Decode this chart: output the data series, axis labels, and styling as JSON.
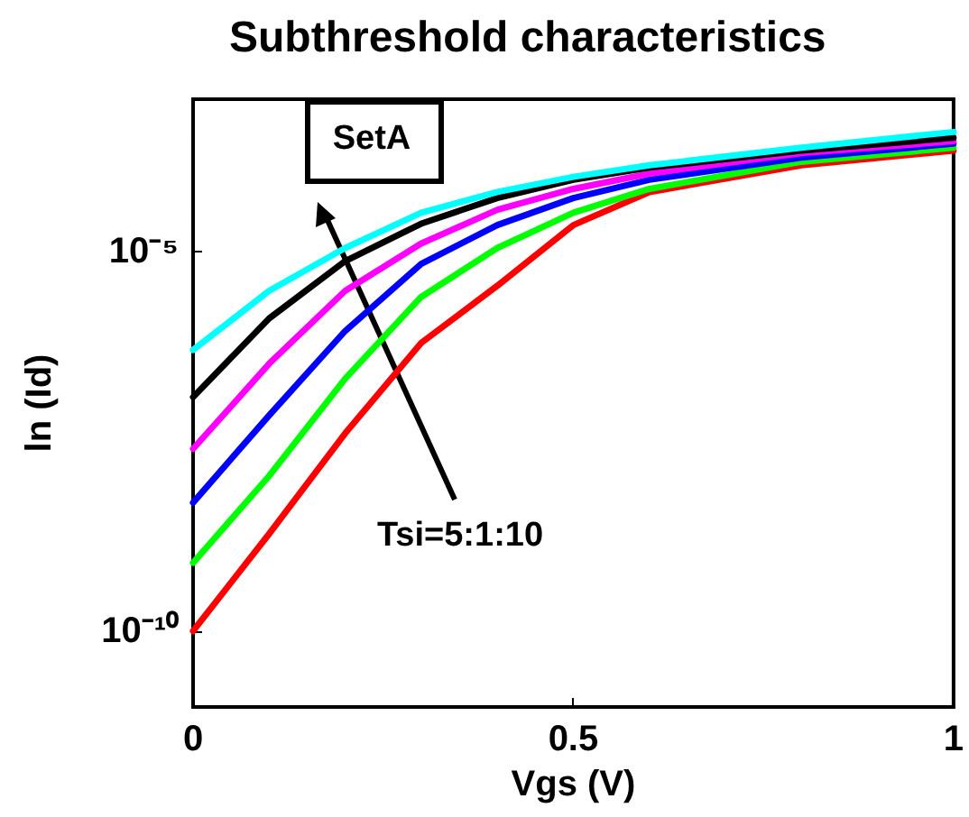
{
  "chart_data": {
    "type": "line",
    "title": "Subthreshold characteristics",
    "xlabel": "Vgs (V)",
    "ylabel": "ln (Id)",
    "log": "y",
    "grid": false,
    "marker": "none",
    "line_style": "solid",
    "x": [
      0,
      0.1,
      0.2,
      0.3,
      0.4,
      0.5,
      0.6,
      0.8,
      1
    ],
    "xlim": [
      0,
      1
    ],
    "xticks": [
      0,
      0.5,
      1
    ],
    "ylim": [
      1e-11,
      0.001
    ],
    "yticks": [
      {
        "value": 1e-10,
        "label": "10⁻¹⁰"
      },
      {
        "value": 1e-05,
        "label": "10⁻⁵"
      }
    ],
    "series": [
      {
        "color": "#ff0000",
        "values": [
          1e-10,
          1.9e-09,
          4e-08,
          6.2e-07,
          3.5e-06,
          2.2e-05,
          6e-05,
          0.000135,
          0.00021
        ]
      },
      {
        "color": "#00ff00",
        "values": [
          7.9e-10,
          1.1e-08,
          2.1e-07,
          2.5e-06,
          1.1e-05,
          3.2e-05,
          6.6e-05,
          0.00015,
          0.00023
        ]
      },
      {
        "color": "#0000ff",
        "values": [
          4.9e-09,
          6.9e-08,
          8.9e-07,
          6.8e-06,
          2.2e-05,
          5e-05,
          8.7e-05,
          0.00017,
          0.00026
        ]
      },
      {
        "color": "#ff00ff",
        "values": [
          2.5e-08,
          3.3e-07,
          3e-06,
          1.26e-05,
          3.5e-05,
          6.6e-05,
          0.000105,
          0.000195,
          0.00028
        ]
      },
      {
        "color": "#000000",
        "values": [
          1.2e-07,
          1.3e-06,
          7.4e-06,
          2.3e-05,
          5e-05,
          8.7e-05,
          0.000126,
          0.00021,
          0.00031
        ]
      },
      {
        "color": "#00ffff",
        "values": [
          5e-07,
          3e-06,
          1.1e-05,
          3.2e-05,
          6e-05,
          9.5e-05,
          0.000135,
          0.00023,
          0.00037
        ]
      }
    ],
    "annotations": [
      "SetA",
      "Tsi=5:1:10"
    ]
  }
}
